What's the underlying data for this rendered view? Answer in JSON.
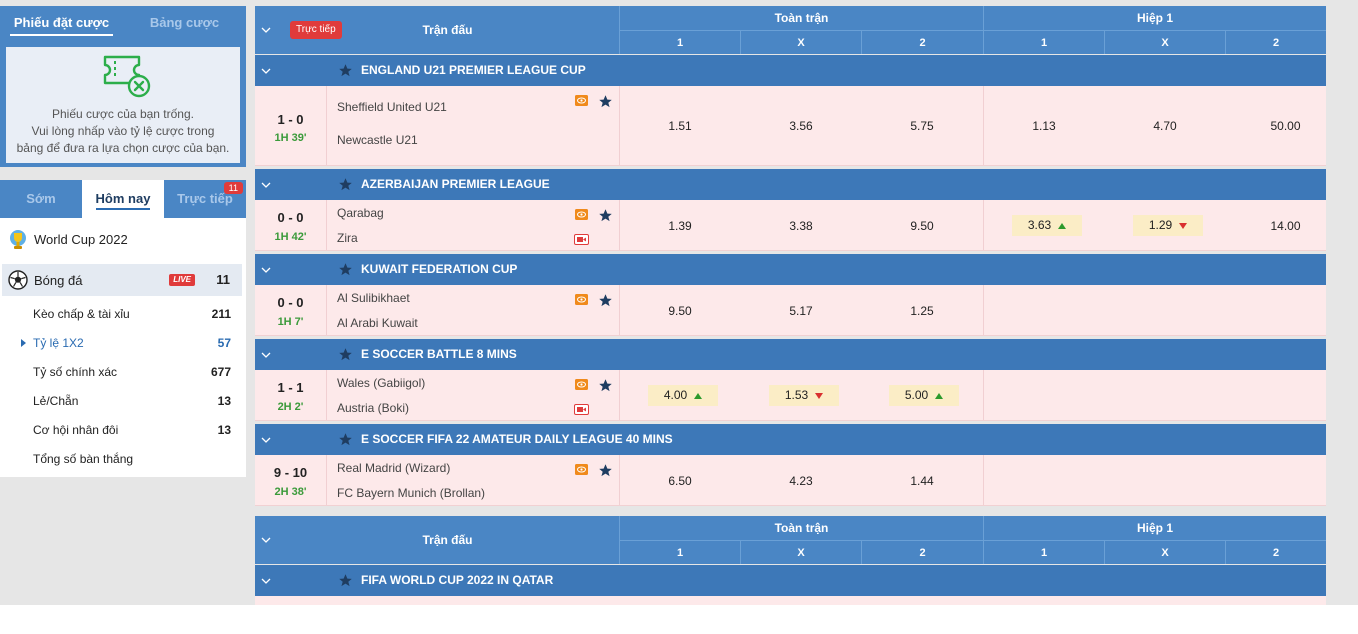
{
  "bet_slip": {
    "tab_ticket": "Phiếu đặt cược",
    "tab_board": "Bảng cược",
    "empty_lines": [
      "Phiếu cược của bạn trống.",
      "Vui lòng nhấp vào tỷ lệ cược trong",
      "bảng để đưa ra lựa chọn cược của bạn."
    ]
  },
  "nav": {
    "tabs": [
      "Sớm",
      "Hôm nay",
      "Trực tiếp"
    ],
    "live_badge": "11",
    "world_cup": "World Cup 2022",
    "sport": {
      "label": "Bóng đá",
      "live_tag": "LIVE",
      "count": "11"
    },
    "items": [
      {
        "label": "Kèo chấp & tài xỉu",
        "count": "211"
      },
      {
        "label": "Tỷ lệ 1X2",
        "count": "57"
      },
      {
        "label": "Tỷ số chính xác",
        "count": "677"
      },
      {
        "label": "Lẻ/Chẵn",
        "count": "13"
      },
      {
        "label": "Cơ hội nhân đôi",
        "count": "13"
      },
      {
        "label": "Tổng số bàn thắng",
        "count": ""
      }
    ]
  },
  "table": {
    "live_button": "Trực tiếp",
    "match_header": "Trận đấu",
    "full_time": "Toàn trận",
    "half_1": "Hiệp 1",
    "cols": [
      "1",
      "X",
      "2",
      "1",
      "X",
      "2"
    ]
  },
  "leagues": [
    {
      "name": "ENGLAND U21 PREMIER LEAGUE CUP",
      "match": {
        "score": "1 - 0",
        "time": "1H 39'",
        "home": "Sheffield United U21",
        "away": "Newcastle U21",
        "odds": [
          "1.51",
          "3.56",
          "5.75",
          "1.13",
          "4.70",
          "50.00"
        ]
      }
    },
    {
      "name": "AZERBAIJAN PREMIER LEAGUE",
      "match": {
        "score": "0 - 0",
        "time": "1H 42'",
        "home": "Qarabag",
        "away": "Zira",
        "odds": [
          "1.39",
          "3.38",
          "9.50",
          "3.63",
          "1.29",
          "14.00"
        ]
      }
    },
    {
      "name": "KUWAIT FEDERATION CUP",
      "match": {
        "score": "0 - 0",
        "time": "1H 7'",
        "home": "Al Sulibikhaet",
        "away": "Al Arabi Kuwait",
        "odds": [
          "9.50",
          "5.17",
          "1.25"
        ]
      }
    },
    {
      "name": "E SOCCER BATTLE 8 MINS",
      "match": {
        "score": "1 - 1",
        "time": "2H 2'",
        "home": "Wales (Gabiigol)",
        "away": "Austria (Boki)",
        "odds": [
          "4.00",
          "1.53",
          "5.00"
        ]
      }
    },
    {
      "name": "E SOCCER FIFA 22 AMATEUR DAILY LEAGUE 40 MINS",
      "match": {
        "score": "9 - 10",
        "time": "2H 38'",
        "home": "Real Madrid (Wizard)",
        "away": "FC Bayern Munich (Brollan)",
        "odds": [
          "6.50",
          "4.23",
          "1.44"
        ]
      }
    },
    {
      "name": "FIFA WORLD CUP 2022 IN QATAR"
    }
  ],
  "colors": {
    "header_blue": "#4a86c5",
    "league_blue": "#3d78b8",
    "row_pink": "#fde9ea",
    "live_red": "#e03b3b",
    "icon_orange": "#f08a1c"
  }
}
